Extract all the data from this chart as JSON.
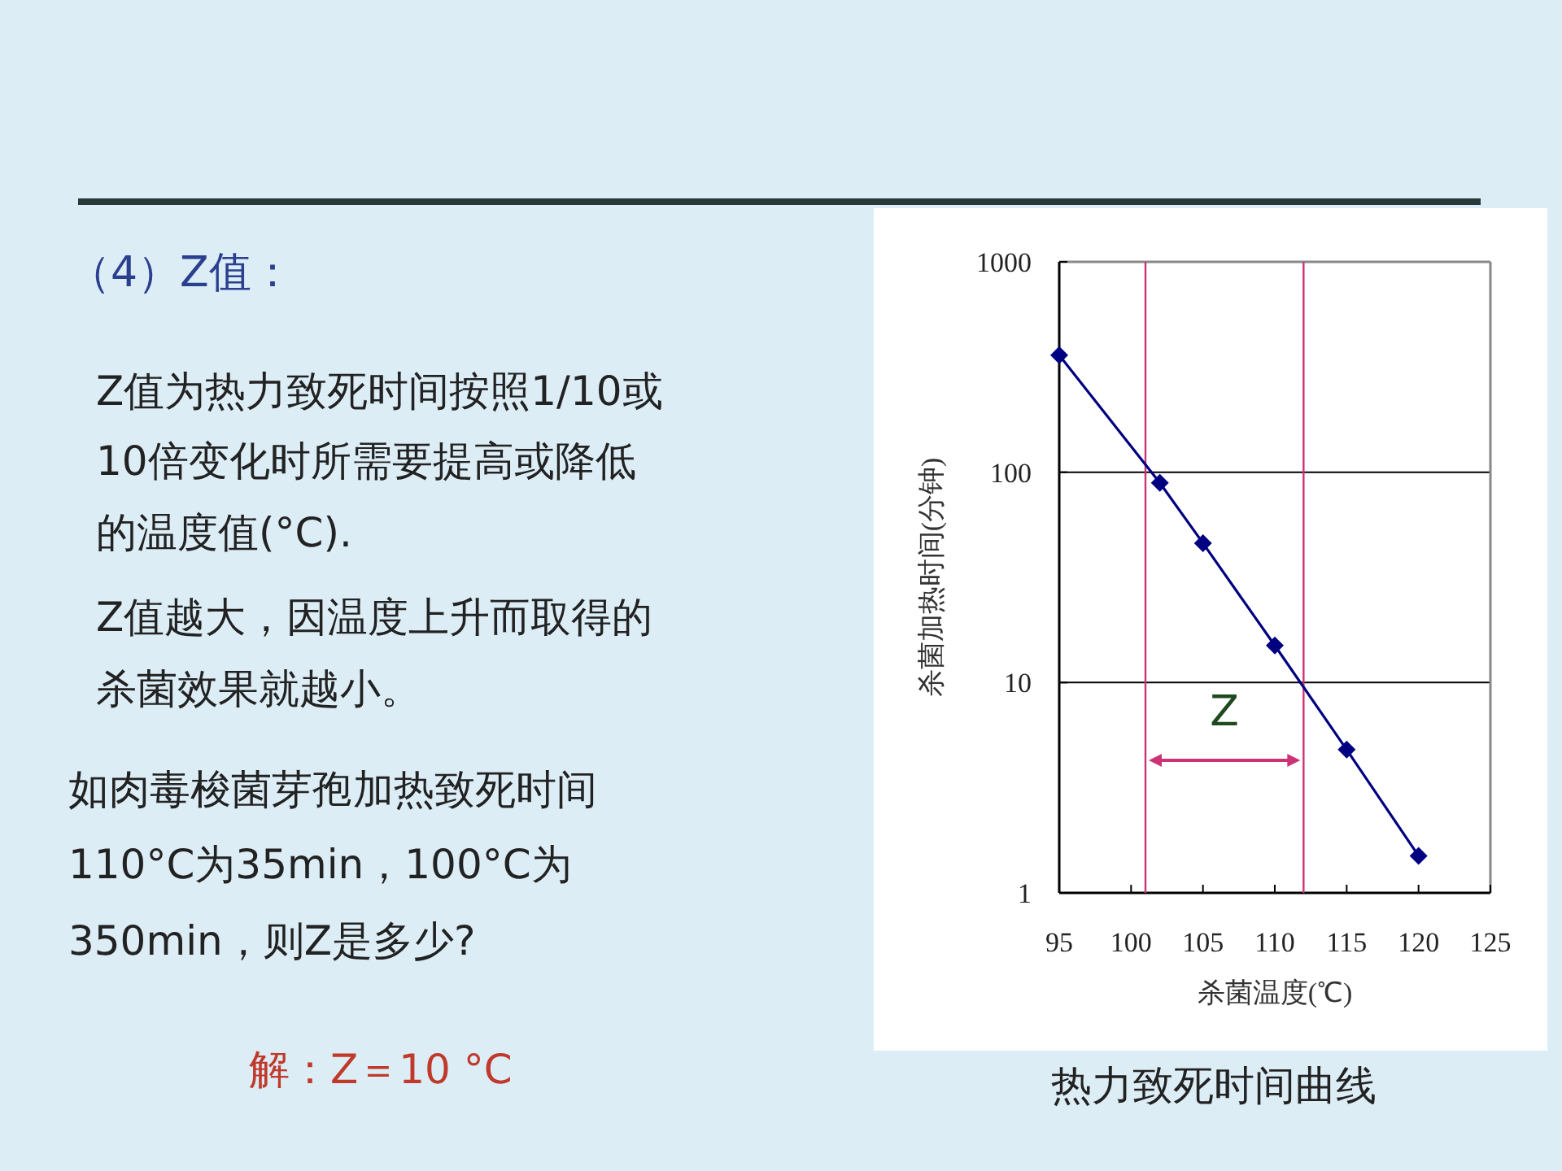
{
  "chart_data": {
    "type": "line",
    "title": "（4）Z值：",
    "xlabel": "杀菌温度(℃)",
    "ylabel": "杀菌加热时间(分钟)",
    "x": [
      95,
      102,
      105,
      110,
      115,
      120
    ],
    "series": [
      {
        "color": "#000080",
        "values": [
          360,
          89,
          46,
          15,
          4.8,
          1.5
        ]
      }
    ],
    "marker": "diamond",
    "log": "y",
    "grid": "y",
    "xlim": [
      95,
      125
    ],
    "xticks": [
      95,
      100,
      105,
      110,
      115,
      120,
      125
    ],
    "ylim": [
      1,
      1000
    ],
    "yticks": [
      1,
      10,
      100,
      1000
    ],
    "ref_lines": [
      {
        "axis": "x",
        "value": 101,
        "color": "#cc3377"
      },
      {
        "axis": "x",
        "value": 112,
        "color": "#cc3377"
      }
    ],
    "annotations": [
      "Z",
      "Z值为热力致死时间按照1/10或",
      "10倍变化时所需要提高或降低",
      "的温度值(°C).",
      "Z值越大，因温度上升而取得的",
      "杀菌效果就越小。",
      "如肉毒梭菌芽孢加热致死时间",
      "110°C为35min，100°C为",
      "350min，则Z是多少?",
      "解：Z＝10 °C",
      "热力致死时间曲线"
    ]
  }
}
